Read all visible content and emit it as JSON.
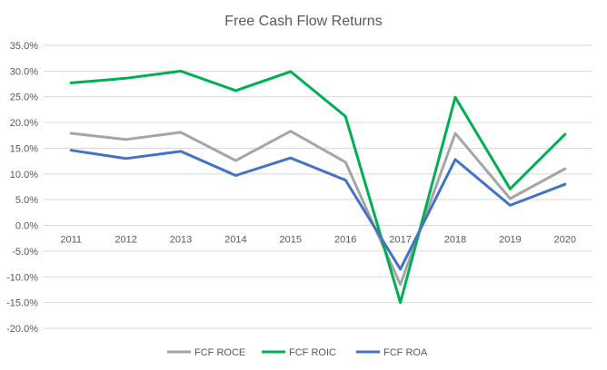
{
  "chart_data": {
    "type": "line",
    "title": "Free Cash Flow Returns",
    "xlabel": "",
    "ylabel": "",
    "categories": [
      "2011",
      "2012",
      "2013",
      "2014",
      "2015",
      "2016",
      "2017",
      "2018",
      "2019",
      "2020"
    ],
    "ylim": [
      -20,
      35
    ],
    "yticks": [
      35,
      30,
      25,
      20,
      15,
      10,
      5,
      0,
      -5,
      -10,
      -15,
      -20
    ],
    "y_tick_format": "percent_1dp",
    "grid": true,
    "legend_position": "bottom",
    "series": [
      {
        "name": "FCF ROCE",
        "color": "#a5a5a5",
        "values": [
          17.9,
          16.7,
          18.1,
          12.6,
          18.3,
          12.3,
          -11.5,
          17.9,
          5.2,
          11.0
        ]
      },
      {
        "name": "FCF ROIC",
        "color": "#00b050",
        "values": [
          27.7,
          28.6,
          30.0,
          26.2,
          29.9,
          21.2,
          -15.0,
          24.9,
          7.1,
          17.7
        ]
      },
      {
        "name": "FCF ROA",
        "color": "#4472c4",
        "values": [
          14.6,
          13.0,
          14.4,
          9.7,
          13.1,
          8.8,
          -8.5,
          12.8,
          3.9,
          8.0
        ]
      }
    ]
  }
}
